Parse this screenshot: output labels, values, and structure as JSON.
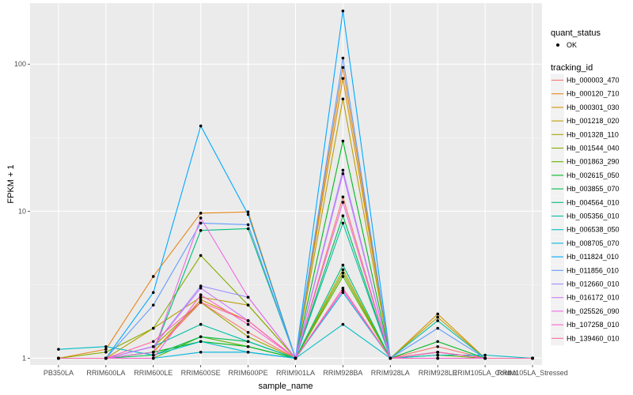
{
  "chart_data": {
    "type": "line",
    "xlabel": "sample_name",
    "ylabel": "FPKM + 1",
    "y_scale": "log10",
    "ylim": [
      0.9,
      260
    ],
    "y_ticks": [
      1,
      10,
      100
    ],
    "y_tick_labels": [
      "1",
      "10",
      "100"
    ],
    "categories": [
      "PB350LA",
      "RRIM600LA",
      "RRIM600LE",
      "RRIM600SE",
      "RRIM600PE",
      "RRIM901LA",
      "RRIM928BA",
      "RRIM928LA",
      "RRIM928LE",
      "RRIM105LA_Control",
      "RRIM105LA_Stressed"
    ],
    "panel_background": "#EBEBEB",
    "grid": true,
    "legend_position": "right",
    "point_legend": {
      "title": "quant_status",
      "label": "OK",
      "color": "#000000"
    },
    "series_legend_title": "tracking_id",
    "series": [
      {
        "name": "Hb_000003_470",
        "color": "#F8766D",
        "values": [
          1.0,
          1.0,
          1.1,
          2.4,
          1.5,
          1.0,
          12.5,
          1.0,
          1.2,
          1.0,
          1.0
        ]
      },
      {
        "name": "Hb_000120_710",
        "color": "#E7861B",
        "values": [
          1.0,
          1.15,
          3.6,
          9.7,
          9.9,
          1.0,
          95,
          1.0,
          1.1,
          1.0,
          1.0
        ]
      },
      {
        "name": "Hb_000301_030",
        "color": "#D39200",
        "values": [
          1.0,
          1.0,
          1.1,
          2.5,
          1.8,
          1.0,
          80,
          1.0,
          2.0,
          1.0,
          1.0
        ]
      },
      {
        "name": "Hb_001218_020",
        "color": "#BB9D00",
        "values": [
          1.0,
          1.0,
          1.6,
          2.6,
          2.3,
          1.0,
          58,
          1.0,
          1.9,
          1.0,
          1.0
        ]
      },
      {
        "name": "Hb_001328_110",
        "color": "#A3A500",
        "values": [
          1.0,
          1.0,
          1.2,
          2.4,
          1.4,
          1.0,
          4.0,
          1.0,
          1.1,
          1.0,
          1.0
        ]
      },
      {
        "name": "Hb_001544_040",
        "color": "#85AD00",
        "values": [
          1.0,
          1.1,
          1.6,
          5.0,
          2.3,
          1.0,
          3.8,
          1.0,
          1.1,
          1.0,
          1.0
        ]
      },
      {
        "name": "Hb_001863_290",
        "color": "#5BB300",
        "values": [
          1.0,
          1.0,
          1.0,
          1.4,
          1.2,
          1.0,
          3.6,
          1.0,
          1.05,
          1.0,
          1.0
        ]
      },
      {
        "name": "Hb_002615_050",
        "color": "#00B81F",
        "values": [
          1.0,
          1.0,
          1.1,
          1.3,
          1.2,
          1.0,
          30,
          1.0,
          1.3,
          1.0,
          1.0
        ]
      },
      {
        "name": "Hb_003855_070",
        "color": "#00BB4E",
        "values": [
          1.0,
          1.0,
          1.05,
          1.4,
          1.3,
          1.0,
          9.3,
          1.0,
          1.1,
          1.0,
          1.0
        ]
      },
      {
        "name": "Hb_004564_010",
        "color": "#00BD7C",
        "values": [
          1.0,
          1.0,
          1.1,
          7.4,
          7.6,
          1.0,
          4.3,
          1.0,
          1.0,
          1.0,
          1.0
        ]
      },
      {
        "name": "Hb_005356_010",
        "color": "#00BFA4",
        "values": [
          1.0,
          1.0,
          1.2,
          1.7,
          1.3,
          1.0,
          8.3,
          1.0,
          1.8,
          1.0,
          1.0
        ]
      },
      {
        "name": "Hb_006538_050",
        "color": "#00BDC4",
        "values": [
          1.15,
          1.2,
          1.05,
          1.3,
          1.1,
          1.0,
          1.7,
          1.0,
          1.05,
          1.05,
          1.0
        ]
      },
      {
        "name": "Hb_008705_070",
        "color": "#00B5DD",
        "values": [
          1.0,
          1.0,
          1.0,
          1.1,
          1.1,
          1.0,
          2.8,
          1.0,
          1.0,
          1.0,
          1.0
        ]
      },
      {
        "name": "Hb_011824_010",
        "color": "#00A9FF",
        "values": [
          1.0,
          1.0,
          2.8,
          38,
          9.5,
          1.0,
          230,
          1.0,
          1.1,
          1.0,
          1.0
        ]
      },
      {
        "name": "Hb_011856_010",
        "color": "#619CFF",
        "values": [
          1.0,
          1.0,
          2.3,
          8.3,
          8.1,
          1.0,
          110,
          1.0,
          1.6,
          1.0,
          1.0
        ]
      },
      {
        "name": "Hb_012660_010",
        "color": "#9E8FFF",
        "values": [
          1.0,
          1.0,
          1.2,
          3.1,
          2.6,
          1.0,
          19,
          1.0,
          1.1,
          1.0,
          1.0
        ]
      },
      {
        "name": "Hb_016172_010",
        "color": "#D077FF",
        "values": [
          1.0,
          1.0,
          1.2,
          3.0,
          1.8,
          1.0,
          18,
          1.0,
          1.1,
          1.0,
          1.0
        ]
      },
      {
        "name": "Hb_025526_090",
        "color": "#EE6BE3",
        "values": [
          1.0,
          1.0,
          1.1,
          9.0,
          2.6,
          1.0,
          11.5,
          1.0,
          1.0,
          1.0,
          1.0
        ]
      },
      {
        "name": "Hb_107258_010",
        "color": "#FD61D1",
        "values": [
          1.0,
          1.0,
          1.0,
          2.7,
          1.7,
          1.0,
          2.9,
          1.0,
          1.0,
          1.0,
          1.0
        ]
      },
      {
        "name": "Hb_139460_010",
        "color": "#FF67A4",
        "values": [
          1.0,
          1.0,
          1.3,
          2.4,
          1.8,
          1.0,
          3.0,
          1.0,
          1.1,
          1.0,
          1.0
        ]
      }
    ]
  }
}
